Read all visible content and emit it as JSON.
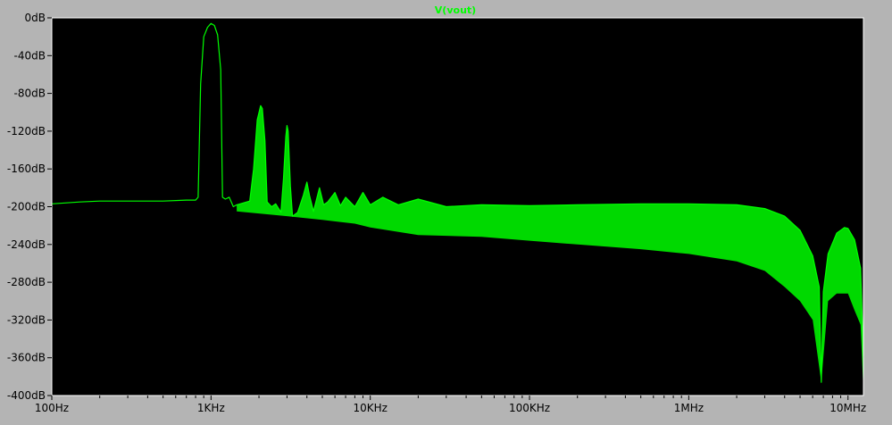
{
  "chart_data": {
    "type": "line",
    "title": "V(vout)",
    "xlabel": "",
    "ylabel": "",
    "x_scale": "log",
    "xlim": [
      100,
      12500000
    ],
    "ylim": [
      -400,
      0
    ],
    "x_ticks": [
      {
        "value": 100,
        "label": "100Hz"
      },
      {
        "value": 1000,
        "label": "1KHz"
      },
      {
        "value": 10000,
        "label": "10KHz"
      },
      {
        "value": 100000,
        "label": "100KHz"
      },
      {
        "value": 1000000,
        "label": "1MHz"
      },
      {
        "value": 10000000,
        "label": "10MHz"
      }
    ],
    "y_ticks": [
      {
        "value": 0,
        "label": "0dB"
      },
      {
        "value": -40,
        "label": "-40dB"
      },
      {
        "value": -80,
        "label": "-80dB"
      },
      {
        "value": -120,
        "label": "-120dB"
      },
      {
        "value": -160,
        "label": "-160dB"
      },
      {
        "value": -200,
        "label": "-200dB"
      },
      {
        "value": -240,
        "label": "-240dB"
      },
      {
        "value": -280,
        "label": "-280dB"
      },
      {
        "value": -320,
        "label": "-320dB"
      },
      {
        "value": -360,
        "label": "-360dB"
      },
      {
        "value": -400,
        "label": "-400dB"
      }
    ],
    "grid": false,
    "colors": {
      "background": "#000000",
      "frame": "#b4b4b4",
      "axis_text": "#000000",
      "plot_border": "#ffffff",
      "series": "#00ff00"
    },
    "series": [
      {
        "name": "V(vout)",
        "color": "#00ff00",
        "points": [
          [
            100,
            -197
          ],
          [
            150,
            -195
          ],
          [
            200,
            -194
          ],
          [
            300,
            -194
          ],
          [
            500,
            -194
          ],
          [
            700,
            -193
          ],
          [
            800,
            -193
          ],
          [
            830,
            -190
          ],
          [
            860,
            -70
          ],
          [
            900,
            -20
          ],
          [
            950,
            -10
          ],
          [
            1000,
            -6
          ],
          [
            1050,
            -8
          ],
          [
            1100,
            -18
          ],
          [
            1150,
            -55
          ],
          [
            1180,
            -190
          ],
          [
            1230,
            -192
          ],
          [
            1300,
            -190
          ],
          [
            1380,
            -200
          ],
          [
            1450,
            -198
          ],
          [
            1750,
            -194
          ],
          [
            1850,
            -160
          ],
          [
            1950,
            -108
          ],
          [
            2050,
            -93
          ],
          [
            2100,
            -96
          ],
          [
            2180,
            -130
          ],
          [
            2250,
            -195
          ],
          [
            2400,
            -200
          ],
          [
            2550,
            -197
          ],
          [
            2750,
            -206
          ],
          [
            2850,
            -170
          ],
          [
            2950,
            -126
          ],
          [
            3000,
            -114
          ],
          [
            3050,
            -120
          ],
          [
            3150,
            -178
          ],
          [
            3250,
            -210
          ],
          [
            3500,
            -206
          ],
          [
            3800,
            -188
          ],
          [
            4000,
            -174
          ],
          [
            4150,
            -188
          ],
          [
            4400,
            -205
          ],
          [
            4800,
            -180
          ],
          [
            5100,
            -198
          ],
          [
            5400,
            -195
          ],
          [
            6000,
            -185
          ],
          [
            6500,
            -199
          ],
          [
            7000,
            -190
          ],
          [
            8000,
            -200
          ],
          [
            9000,
            -185
          ],
          [
            10000,
            -198
          ],
          [
            12000,
            -190
          ],
          [
            15000,
            -198
          ],
          [
            20000,
            -192
          ],
          [
            30000,
            -200
          ],
          [
            50000,
            -198
          ],
          [
            100000,
            -199
          ],
          [
            200000,
            -198
          ],
          [
            500000,
            -197
          ],
          [
            1000000,
            -197
          ],
          [
            2000000,
            -198
          ],
          [
            3000000,
            -202
          ],
          [
            4000000,
            -210
          ],
          [
            5000000,
            -225
          ],
          [
            6000000,
            -252
          ],
          [
            6600000,
            -285
          ],
          [
            6800000,
            -386
          ],
          [
            7000000,
            -290
          ],
          [
            7500000,
            -250
          ],
          [
            8500000,
            -228
          ],
          [
            9500000,
            -222
          ],
          [
            10000000,
            -223
          ],
          [
            11000000,
            -235
          ],
          [
            12000000,
            -265
          ],
          [
            12500000,
            -360
          ]
        ],
        "lower_envelope": [
          [
            1450,
            -205
          ],
          [
            3000,
            -210
          ],
          [
            5000,
            -214
          ],
          [
            8000,
            -218
          ],
          [
            10000,
            -222
          ],
          [
            20000,
            -230
          ],
          [
            50000,
            -232
          ],
          [
            100000,
            -236
          ],
          [
            200000,
            -240
          ],
          [
            500000,
            -245
          ],
          [
            1000000,
            -250
          ],
          [
            2000000,
            -258
          ],
          [
            3000000,
            -268
          ],
          [
            4000000,
            -285
          ],
          [
            5000000,
            -300
          ],
          [
            6000000,
            -320
          ],
          [
            6800000,
            -386
          ],
          [
            7500000,
            -300
          ],
          [
            8500000,
            -292
          ],
          [
            10000000,
            -292
          ],
          [
            11000000,
            -310
          ],
          [
            12000000,
            -325
          ],
          [
            12500000,
            -395
          ]
        ]
      }
    ]
  }
}
